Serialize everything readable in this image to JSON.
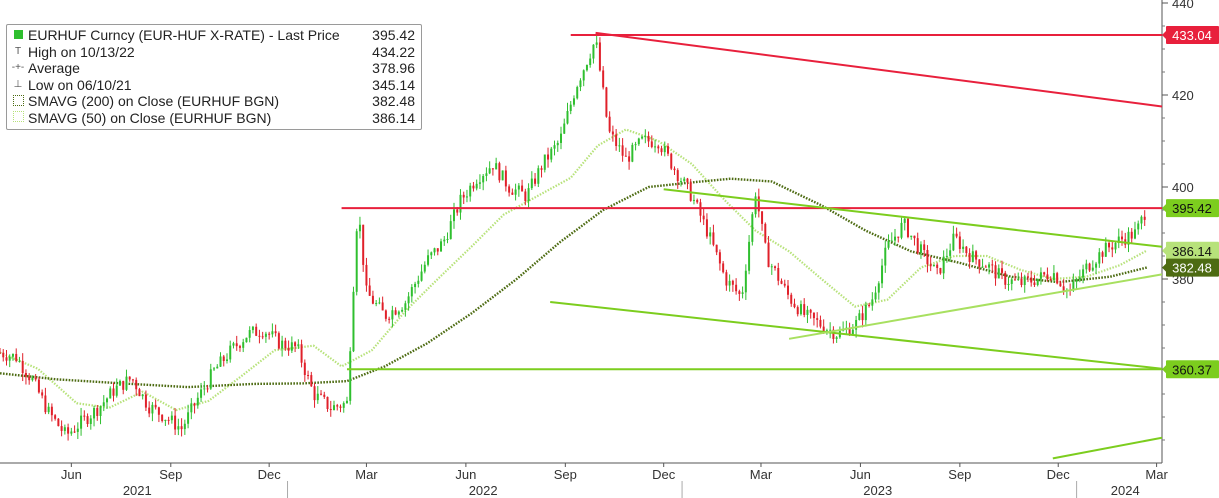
{
  "legend": {
    "title": "EURHUF Curncy (EUR-HUF X-RATE) - Last Price",
    "title_value": "395.42",
    "rows": [
      {
        "label": "High on 10/13/22",
        "value": "434.22",
        "symbol": "T"
      },
      {
        "label": "Average",
        "value": "378.96",
        "symbol": "-+-"
      },
      {
        "label": "Low on 06/10/21",
        "value": "345.14",
        "symbol": "⊥"
      },
      {
        "label": "SMAVG (200)  on Close (EURHUF BGN)",
        "value": "382.48",
        "symbol": "dotted-dark"
      },
      {
        "label": "SMAVG (50)  on Close (EURHUF BGN)",
        "value": "386.14",
        "symbol": "dotted-light"
      }
    ]
  },
  "colors": {
    "up_candle": "#2fbf2f",
    "down_candle": "#e0202a",
    "resistance": "#e8203c",
    "trend_green": "#7ccd1e",
    "sma200": "#4d6b12",
    "sma50": "#b7e27a",
    "axis_text": "#333333"
  },
  "chart_data": {
    "type": "candlestick",
    "title": "",
    "ylabel": "",
    "ylim": [
      340,
      440
    ],
    "y_ticks": [
      "440",
      "420",
      "400",
      "380"
    ],
    "y_tick_values": [
      440,
      420,
      400,
      380
    ],
    "x_range": [
      "2021-04-10",
      "2024-03-20"
    ],
    "x_tick_labels": [
      "Jun",
      "Sep",
      "Dec",
      "Mar",
      "Jun",
      "Sep",
      "Dec",
      "Mar",
      "Jun",
      "Sep",
      "Dec",
      "Mar"
    ],
    "x_tick_dates": [
      "2021-06-15",
      "2021-09-15",
      "2021-12-15",
      "2022-03-15",
      "2022-06-15",
      "2022-09-15",
      "2022-12-15",
      "2023-03-15",
      "2023-06-15",
      "2023-09-15",
      "2023-12-15",
      "2024-03-15"
    ],
    "year_labels": [
      {
        "text": "2021",
        "date": "2021-08-15"
      },
      {
        "text": "2022",
        "date": "2022-07-01"
      },
      {
        "text": "2023",
        "date": "2023-07-01"
      },
      {
        "text": "2024",
        "date": "2024-02-15"
      }
    ],
    "year_boundaries": [
      "2022-01-01",
      "2023-01-01",
      "2024-01-01"
    ],
    "right_labels": [
      {
        "text": "433.04",
        "value": 433.04,
        "color": "#e8203c",
        "text_color": "#ffffff"
      },
      {
        "text": "395.42",
        "value": 395.42,
        "color": "#7ccd1e",
        "text_color": "#111111"
      },
      {
        "text": "386.14",
        "value": 386.14,
        "color": "#b7e27a",
        "text_color": "#111111"
      },
      {
        "text": "382.48",
        "value": 382.48,
        "color": "#4d6b12",
        "text_color": "#ffffff"
      },
      {
        "text": "360.37",
        "value": 360.37,
        "color": "#7ccd1e",
        "text_color": "#111111"
      }
    ],
    "lines": [
      {
        "name": "",
        "kind": "horizontal",
        "color": "#e8203c",
        "from": "2022-09-20",
        "to": "2024-03-20",
        "y": 433.04
      },
      {
        "name": "",
        "kind": "horizontal",
        "color": "#e8203c",
        "from": "2022-02-20",
        "to": "2024-03-20",
        "y": 395.42
      },
      {
        "name": "",
        "kind": "horizontal",
        "color": "#7ccd1e",
        "from": "2022-02-25",
        "to": "2024-03-20",
        "y": 360.37
      },
      {
        "name": "",
        "kind": "segment",
        "color": "#e8203c",
        "x1": "2022-10-13",
        "y1": 433.5,
        "x2": "2024-03-20",
        "y2": 417.5
      },
      {
        "name": "",
        "kind": "segment",
        "color": "#7ccd1e",
        "x1": "2022-12-15",
        "y1": 399.5,
        "x2": "2024-03-20",
        "y2": 387.0
      },
      {
        "name": "",
        "kind": "segment",
        "color": "#7ccd1e",
        "x1": "2022-09-01",
        "y1": 375.0,
        "x2": "2024-03-20",
        "y2": 360.5
      },
      {
        "name": "",
        "kind": "segment",
        "color": "#a8e060",
        "x1": "2023-04-10",
        "y1": 367.0,
        "x2": "2024-03-20",
        "y2": 381.0
      },
      {
        "name": "",
        "kind": "segment",
        "color": "#7ccd1e",
        "x1": "2023-12-10",
        "y1": 341.0,
        "x2": "2024-03-20",
        "y2": 345.5
      }
    ],
    "price_path": [
      [
        "2021-04-10",
        364.0
      ],
      [
        "2021-04-25",
        363.0
      ],
      [
        "2021-05-10",
        358.0
      ],
      [
        "2021-05-25",
        351.0
      ],
      [
        "2021-06-10",
        346.0
      ],
      [
        "2021-06-25",
        349.0
      ],
      [
        "2021-07-10",
        352.0
      ],
      [
        "2021-07-25",
        356.0
      ],
      [
        "2021-08-10",
        358.5
      ],
      [
        "2021-08-25",
        352.5
      ],
      [
        "2021-09-10",
        350.0
      ],
      [
        "2021-09-25",
        347.5
      ],
      [
        "2021-10-10",
        354.0
      ],
      [
        "2021-10-25",
        360.0
      ],
      [
        "2021-11-10",
        364.5
      ],
      [
        "2021-11-25",
        368.0
      ],
      [
        "2021-12-10",
        369.0
      ],
      [
        "2021-12-25",
        366.0
      ],
      [
        "2022-01-10",
        365.0
      ],
      [
        "2022-01-25",
        355.0
      ],
      [
        "2022-02-10",
        352.0
      ],
      [
        "2022-02-25",
        353.0
      ],
      [
        "2022-03-07",
        396.0
      ],
      [
        "2022-03-15",
        377.0
      ],
      [
        "2022-04-01",
        372.0
      ],
      [
        "2022-04-20",
        375.0
      ],
      [
        "2022-05-10",
        384.0
      ],
      [
        "2022-05-25",
        388.0
      ],
      [
        "2022-06-10",
        397.0
      ],
      [
        "2022-06-25",
        402.0
      ],
      [
        "2022-07-10",
        405.0
      ],
      [
        "2022-07-25",
        400.0
      ],
      [
        "2022-08-10",
        398.0
      ],
      [
        "2022-08-25",
        405.0
      ],
      [
        "2022-09-10",
        410.0
      ],
      [
        "2022-09-25",
        422.0
      ],
      [
        "2022-10-13",
        432.0
      ],
      [
        "2022-10-25",
        412.0
      ],
      [
        "2022-11-10",
        406.0
      ],
      [
        "2022-11-25",
        410.0
      ],
      [
        "2022-12-10",
        410.0
      ],
      [
        "2022-12-25",
        404.0
      ],
      [
        "2023-01-10",
        398.0
      ],
      [
        "2023-01-25",
        390.0
      ],
      [
        "2023-02-10",
        380.0
      ],
      [
        "2023-02-25",
        376.0
      ],
      [
        "2023-03-10",
        399.0
      ],
      [
        "2023-03-20",
        385.0
      ],
      [
        "2023-04-10",
        376.0
      ],
      [
        "2023-04-25",
        372.0
      ],
      [
        "2023-05-10",
        370.0
      ],
      [
        "2023-05-25",
        368.0
      ],
      [
        "2023-06-10",
        370.0
      ],
      [
        "2023-06-25",
        375.0
      ],
      [
        "2023-07-10",
        387.0
      ],
      [
        "2023-07-25",
        392.0
      ],
      [
        "2023-08-10",
        386.0
      ],
      [
        "2023-08-25",
        381.0
      ],
      [
        "2023-09-10",
        389.0
      ],
      [
        "2023-09-25",
        385.0
      ],
      [
        "2023-10-10",
        383.0
      ],
      [
        "2023-10-25",
        380.0
      ],
      [
        "2023-11-10",
        379.0
      ],
      [
        "2023-11-25",
        380.0
      ],
      [
        "2023-12-10",
        381.5
      ],
      [
        "2023-12-25",
        377.0
      ],
      [
        "2024-01-10",
        382.5
      ],
      [
        "2024-01-25",
        386.0
      ],
      [
        "2024-02-10",
        388.5
      ],
      [
        "2024-02-25",
        390.0
      ],
      [
        "2024-03-06",
        395.5
      ]
    ],
    "sma200_path": [
      [
        "2021-04-10",
        359.5
      ],
      [
        "2021-06-01",
        358.2
      ],
      [
        "2021-08-01",
        357.3
      ],
      [
        "2021-10-01",
        356.5
      ],
      [
        "2021-12-01",
        357.2
      ],
      [
        "2022-01-15",
        357.3
      ],
      [
        "2022-02-25",
        357.8
      ],
      [
        "2022-04-01",
        361.0
      ],
      [
        "2022-05-10",
        366.0
      ],
      [
        "2022-06-20",
        372.5
      ],
      [
        "2022-08-01",
        380.0
      ],
      [
        "2022-09-10",
        388.0
      ],
      [
        "2022-10-20",
        395.0
      ],
      [
        "2022-12-01",
        400.0
      ],
      [
        "2023-01-10",
        401.0
      ],
      [
        "2023-02-15",
        401.8
      ],
      [
        "2023-03-25",
        401.2
      ],
      [
        "2023-05-10",
        396.0
      ],
      [
        "2023-06-20",
        390.5
      ],
      [
        "2023-08-01",
        386.0
      ],
      [
        "2023-09-15",
        383.5
      ],
      [
        "2023-11-01",
        380.5
      ],
      [
        "2023-12-15",
        379.3
      ],
      [
        "2024-02-01",
        380.5
      ],
      [
        "2024-03-06",
        382.5
      ]
    ],
    "sma50_path": [
      [
        "2021-04-10",
        364.0
      ],
      [
        "2021-05-15",
        360.5
      ],
      [
        "2021-06-20",
        353.0
      ],
      [
        "2021-07-20",
        352.0
      ],
      [
        "2021-08-20",
        355.5
      ],
      [
        "2021-09-20",
        351.5
      ],
      [
        "2021-10-20",
        353.5
      ],
      [
        "2021-11-20",
        359.0
      ],
      [
        "2021-12-20",
        364.5
      ],
      [
        "2022-01-25",
        365.5
      ],
      [
        "2022-02-20",
        361.0
      ],
      [
        "2022-03-20",
        364.5
      ],
      [
        "2022-04-20",
        373.0
      ],
      [
        "2022-05-20",
        380.0
      ],
      [
        "2022-06-20",
        387.0
      ],
      [
        "2022-07-20",
        394.0
      ],
      [
        "2022-08-20",
        398.0
      ],
      [
        "2022-09-20",
        402.0
      ],
      [
        "2022-10-15",
        409.0
      ],
      [
        "2022-11-10",
        412.5
      ],
      [
        "2022-12-10",
        410.0
      ],
      [
        "2023-01-10",
        405.0
      ],
      [
        "2023-02-10",
        397.0
      ],
      [
        "2023-03-10",
        390.5
      ],
      [
        "2023-04-10",
        386.0
      ],
      [
        "2023-05-10",
        380.0
      ],
      [
        "2023-06-10",
        374.0
      ],
      [
        "2023-07-10",
        375.5
      ],
      [
        "2023-08-10",
        382.5
      ],
      [
        "2023-09-10",
        385.0
      ],
      [
        "2023-10-10",
        385.0
      ],
      [
        "2023-11-10",
        382.0
      ],
      [
        "2023-12-10",
        380.0
      ],
      [
        "2024-01-10",
        380.5
      ],
      [
        "2024-02-10",
        383.0
      ],
      [
        "2024-03-06",
        386.2
      ]
    ],
    "candle_interval_days": 3,
    "grid": false,
    "legend_position": "top-left"
  }
}
